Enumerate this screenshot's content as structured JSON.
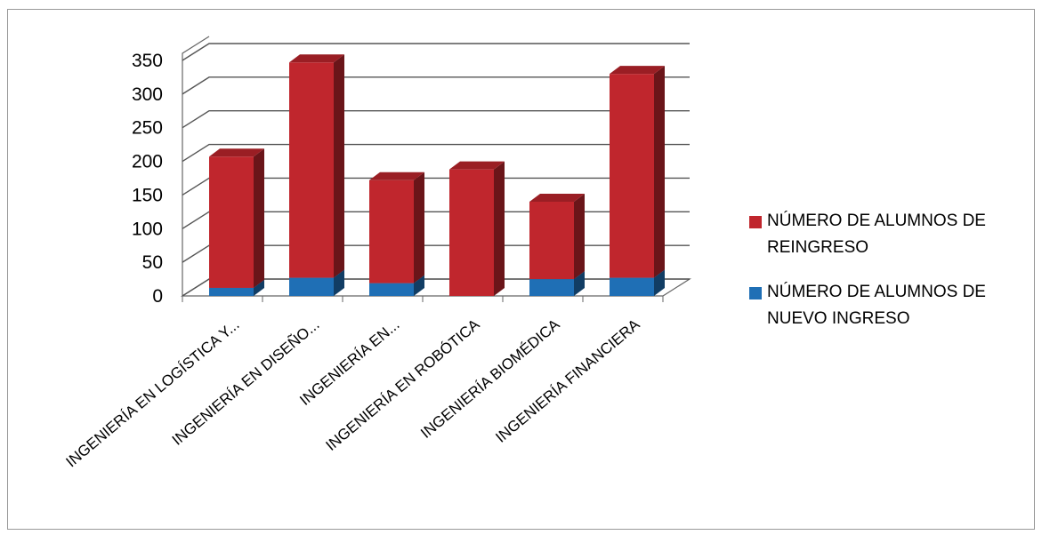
{
  "chart_data": {
    "type": "bar",
    "stacked": true,
    "three_d": true,
    "categories": [
      "INGENIERÍA EN LOGÍSTICA Y...",
      "INGENIERÍA EN DISEÑO...",
      "INGENIERÍA EN...",
      "INGENIERÍA EN ROBÓTICA",
      "INGENIERÍA BIOMÉDICA",
      "INGENIERÍA FINANCIERA"
    ],
    "series": [
      {
        "name": "NÚMERO DE ALUMNOS DE NUEVO INGRESO",
        "color": "#1f6fb5",
        "values": [
          12,
          27,
          19,
          0,
          25,
          27
        ]
      },
      {
        "name": "NÚMERO DE ALUMNOS DE REINGRESO",
        "color": "#c0262d",
        "values": [
          195,
          320,
          153,
          188,
          115,
          303
        ]
      }
    ],
    "yticks": [
      0,
      50,
      100,
      150,
      200,
      250,
      300,
      350
    ],
    "ylim": [
      0,
      350
    ],
    "grid": true,
    "legend_position": "right"
  },
  "legend": {
    "items": [
      {
        "label": "NÚMERO DE ALUMNOS DE REINGRESO",
        "color": "#c0262d"
      },
      {
        "label": "NÚMERO DE ALUMNOS DE NUEVO INGRESO",
        "color": "#1f6fb5"
      }
    ]
  }
}
